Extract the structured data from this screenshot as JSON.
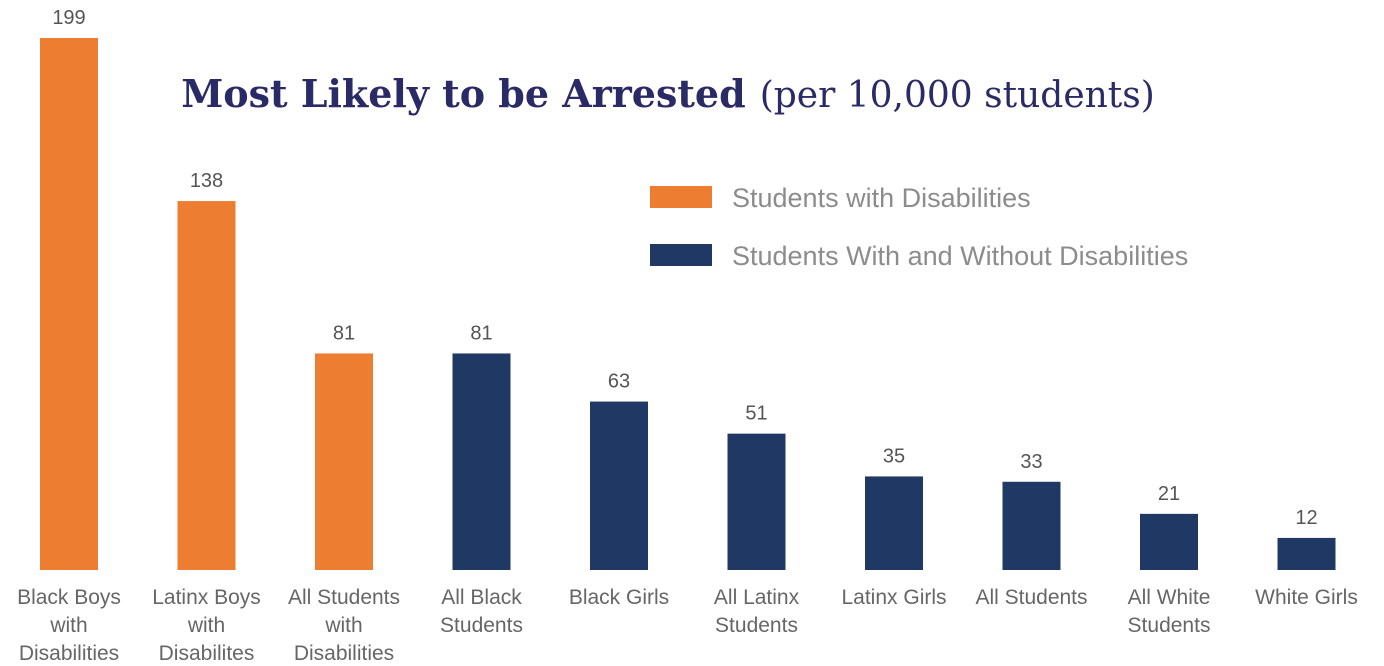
{
  "chart_data": {
    "type": "bar",
    "title": "Most Likely to be Arrested",
    "subtitle": "(per 10,000 students)",
    "categories": [
      [
        "Black Boys",
        "with",
        "Disabilities"
      ],
      [
        "Latinx Boys",
        "with",
        "Disabilites"
      ],
      [
        "All Students",
        "with",
        "Disabilities"
      ],
      [
        "All Black",
        "Students"
      ],
      [
        "Black Girls"
      ],
      [
        "All Latinx",
        "Students"
      ],
      [
        "Latinx Girls"
      ],
      [
        "All Students"
      ],
      [
        "All White",
        "Students"
      ],
      [
        "White Girls"
      ]
    ],
    "values": [
      199,
      138,
      81,
      81,
      63,
      51,
      35,
      33,
      21,
      12
    ],
    "value_labels": [
      "199",
      "138",
      "81",
      "81",
      "63",
      "51",
      "35",
      "33",
      "21",
      "12"
    ],
    "series_index": [
      0,
      0,
      0,
      1,
      1,
      1,
      1,
      1,
      1,
      1
    ],
    "series": [
      {
        "name": "Students with Disabilities",
        "color": "#ed7d31"
      },
      {
        "name": "Students With and Without Disabilities",
        "color": "#1f3864"
      }
    ],
    "ylim": [
      0,
      199
    ],
    "grid": false,
    "legend_position": "top-right"
  }
}
